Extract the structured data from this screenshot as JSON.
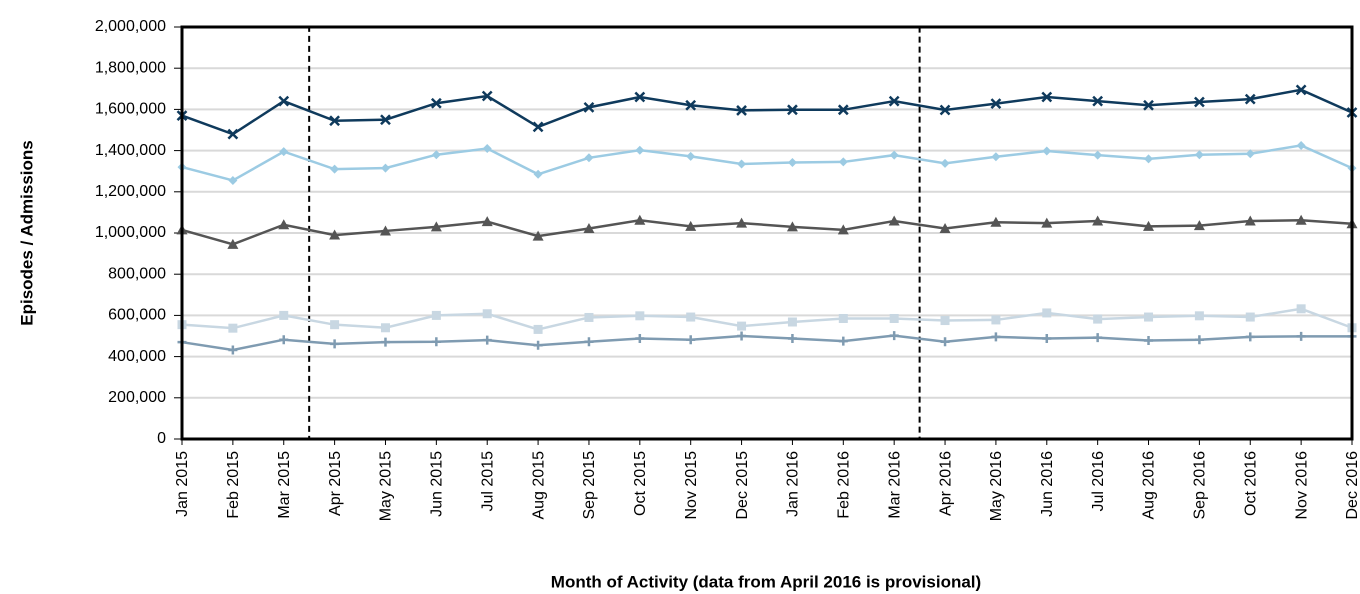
{
  "chart_data": {
    "type": "line",
    "y_label": "Episodes / Admissions",
    "x_label": "Month of Activity (data from April 2016 is provisional)",
    "categories": [
      "Jan 2015",
      "Feb 2015",
      "Mar 2015",
      "Apr 2015",
      "May 2015",
      "Jun 2015",
      "Jul 2015",
      "Aug 2015",
      "Sep 2015",
      "Oct 2015",
      "Nov 2015",
      "Dec 2015",
      "Jan 2016",
      "Feb 2016",
      "Mar 2016",
      "Apr 2016",
      "May 2016",
      "Jun 2016",
      "Jul 2016",
      "Aug 2016",
      "Sep 2016",
      "Oct 2016",
      "Nov 2016",
      "Dec 2016"
    ],
    "ylim": [
      0,
      2000000
    ],
    "yticks": [
      0,
      {
        "value": 200000,
        "label": "200,000"
      },
      {
        "value": 400000,
        "label": "400,000"
      },
      {
        "value": 600000,
        "label": "600,000"
      },
      {
        "value": 800000,
        "label": "800,000"
      },
      {
        "value": 1000000,
        "label": "1,000,000"
      },
      {
        "value": 1200000,
        "label": "1,200,000"
      },
      {
        "value": 1400000,
        "label": "1,400,000"
      },
      {
        "value": 1600000,
        "label": "1,600,000"
      },
      {
        "value": 1800000,
        "label": "1,800,000"
      },
      {
        "value": 2000000,
        "label": "2,000,000"
      }
    ],
    "grid": true,
    "series": [
      {
        "color": "#0f3a5c",
        "marker": "x",
        "values": [
          1570000,
          1480000,
          1640000,
          1545000,
          1550000,
          1630000,
          1665000,
          1515000,
          1610000,
          1660000,
          1620000,
          1595000,
          1598000,
          1598000,
          1640000,
          1597000,
          1628000,
          1660000,
          1640000,
          1620000,
          1636000,
          1650000,
          1695000,
          1585000
        ]
      },
      {
        "color": "#9ccbe3",
        "marker": "diamond",
        "values": [
          1320000,
          1255000,
          1395000,
          1310000,
          1315000,
          1380000,
          1410000,
          1285000,
          1365000,
          1402000,
          1372000,
          1335000,
          1342000,
          1345000,
          1378000,
          1338000,
          1370000,
          1398000,
          1378000,
          1360000,
          1380000,
          1385000,
          1425000,
          1315000
        ]
      },
      {
        "color": "#555555",
        "marker": "triangle",
        "values": [
          1015000,
          945000,
          1040000,
          990000,
          1010000,
          1030000,
          1055000,
          985000,
          1022000,
          1062000,
          1032000,
          1048000,
          1030000,
          1015000,
          1058000,
          1022000,
          1052000,
          1048000,
          1058000,
          1032000,
          1036000,
          1058000,
          1062000,
          1045000
        ]
      },
      {
        "color": "#c8d7e2",
        "marker": "square",
        "values": [
          555000,
          538000,
          600000,
          555000,
          540000,
          600000,
          608000,
          532000,
          590000,
          598000,
          592000,
          548000,
          568000,
          585000,
          585000,
          575000,
          578000,
          612000,
          582000,
          592000,
          598000,
          592000,
          632000,
          540000
        ]
      },
      {
        "color": "#7f9bb1",
        "marker": "plus",
        "values": [
          470000,
          432000,
          482000,
          462000,
          470000,
          472000,
          480000,
          455000,
          472000,
          488000,
          482000,
          500000,
          488000,
          475000,
          502000,
          472000,
          496000,
          488000,
          492000,
          478000,
          482000,
          496000,
          498000,
          498000
        ]
      }
    ]
  }
}
